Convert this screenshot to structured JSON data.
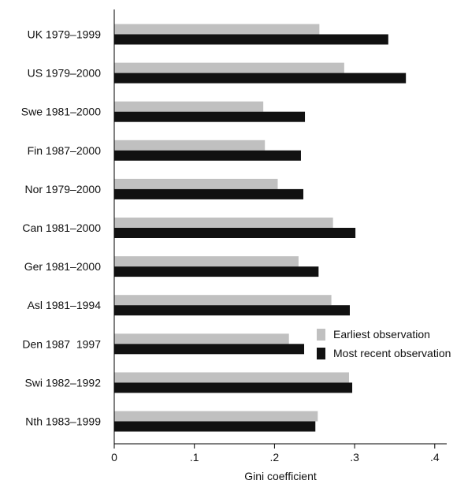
{
  "chart_data": {
    "type": "bar",
    "orientation": "horizontal",
    "categories": [
      "UK 1979–1999",
      "US 1979–2000",
      "Swe 1981–2000",
      "Fin 1987–2000",
      "Nor 1979–2000",
      "Can 1981–2000",
      "Ger 1981–2000",
      "Asl 1981–1994",
      "Den 1987  1997",
      "Swi 1982–1992",
      "Nth 1983–1999"
    ],
    "series": [
      {
        "name": "Earliest observation",
        "color": "#c0c0c0",
        "values": [
          0.256,
          0.287,
          0.186,
          0.188,
          0.204,
          0.273,
          0.23,
          0.271,
          0.218,
          0.293,
          0.254
        ]
      },
      {
        "name": "Most recent observation",
        "color": "#111111",
        "values": [
          0.342,
          0.364,
          0.238,
          0.233,
          0.236,
          0.301,
          0.255,
          0.294,
          0.237,
          0.297,
          0.251
        ]
      }
    ],
    "xlabel": "Gini coefficient",
    "ylabel": "",
    "xlim": [
      0,
      0.415
    ],
    "xticks": [
      0,
      0.1,
      0.2,
      0.3,
      0.4
    ],
    "xtick_labels": [
      "0",
      ".1",
      ".2",
      ".3",
      ".4"
    ],
    "grid": false,
    "legend_position": "right"
  }
}
